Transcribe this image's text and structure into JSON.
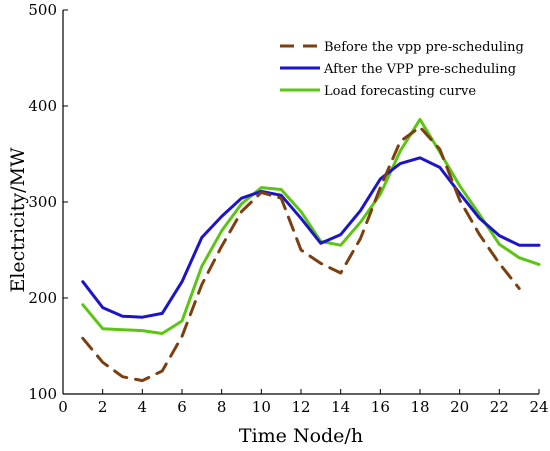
{
  "chart_data": {
    "type": "line",
    "xlabel": "Time Node/h",
    "ylabel": "Electricity/MW",
    "xlim": [
      0,
      24
    ],
    "ylim": [
      100,
      500
    ],
    "xticks": [
      0,
      2,
      4,
      6,
      8,
      10,
      12,
      14,
      16,
      18,
      20,
      22,
      24
    ],
    "yticks": [
      100,
      200,
      300,
      400,
      500
    ],
    "grid": false,
    "legend_position": "top-right",
    "series": [
      {
        "name": "Before the vpp pre-scheduling",
        "color": "#7b3f12",
        "dash": "dashed",
        "x": [
          1,
          2,
          3,
          4,
          5,
          6,
          7,
          8,
          9,
          10,
          11,
          12,
          13,
          14,
          15,
          16,
          17,
          18,
          19,
          20,
          21,
          22,
          23
        ],
        "values": [
          158,
          133,
          118,
          114,
          124,
          160,
          214,
          254,
          290,
          310,
          304,
          250,
          236,
          226,
          262,
          315,
          363,
          378,
          355,
          302,
          266,
          236,
          210
        ]
      },
      {
        "name": "After the VPP pre-scheduling",
        "color": "#1b14c8",
        "dash": "solid",
        "x": [
          1,
          2,
          3,
          4,
          5,
          6,
          7,
          8,
          9,
          10,
          11,
          12,
          13,
          14,
          15,
          16,
          17,
          18,
          19,
          20,
          21,
          22,
          23,
          24
        ],
        "values": [
          217,
          190,
          181,
          180,
          184,
          217,
          263,
          285,
          304,
          311,
          307,
          283,
          257,
          266,
          291,
          324,
          340,
          346,
          336,
          309,
          283,
          265,
          255,
          255
        ]
      },
      {
        "name": "Load forecasting curve",
        "color": "#5cc514",
        "dash": "solid",
        "x": [
          1,
          2,
          3,
          4,
          5,
          6,
          7,
          8,
          9,
          10,
          11,
          12,
          13,
          14,
          15,
          16,
          17,
          18,
          19,
          20,
          21,
          22,
          23,
          24
        ],
        "values": [
          193,
          168,
          167,
          166,
          163,
          176,
          233,
          270,
          298,
          315,
          313,
          290,
          259,
          255,
          279,
          308,
          353,
          386,
          352,
          317,
          287,
          256,
          242,
          235
        ]
      }
    ]
  }
}
